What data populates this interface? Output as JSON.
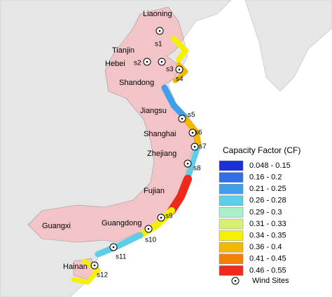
{
  "provinces": [
    "Liaoning",
    "Tianjin",
    "Hebei",
    "Shandong",
    "Jiangsu",
    "Shanghai",
    "Zhejiang",
    "Fujian",
    "Guangdong",
    "Guangxi",
    "Hainan"
  ],
  "sites": [
    "s1",
    "s2",
    "s3",
    "s4",
    "s5",
    "s6",
    "s7",
    "s8",
    "s9",
    "s10",
    "s11",
    "s12"
  ],
  "legend": {
    "title": "Capacity Factor (CF)",
    "items": [
      {
        "label": "0.048 - 0.15",
        "color": "#1a2fd6"
      },
      {
        "label": "0.16 - 0.2",
        "color": "#2f6fe8"
      },
      {
        "label": "0.21 - 0.25",
        "color": "#3f9fe8"
      },
      {
        "label": "0.26 - 0.28",
        "color": "#5dcde8"
      },
      {
        "label": "0.29 - 0.3",
        "color": "#a8f0c8"
      },
      {
        "label": "0.31 - 0.33",
        "color": "#d8f070"
      },
      {
        "label": "0.34 - 0.35",
        "color": "#f5f000"
      },
      {
        "label": "0.36 - 0.4",
        "color": "#f5b800"
      },
      {
        "label": "0.41 - 0.45",
        "color": "#f58000"
      },
      {
        "label": "0.46 - 0.55",
        "color": "#ee2a1a"
      }
    ],
    "wind_sites": "Wind Sites"
  }
}
